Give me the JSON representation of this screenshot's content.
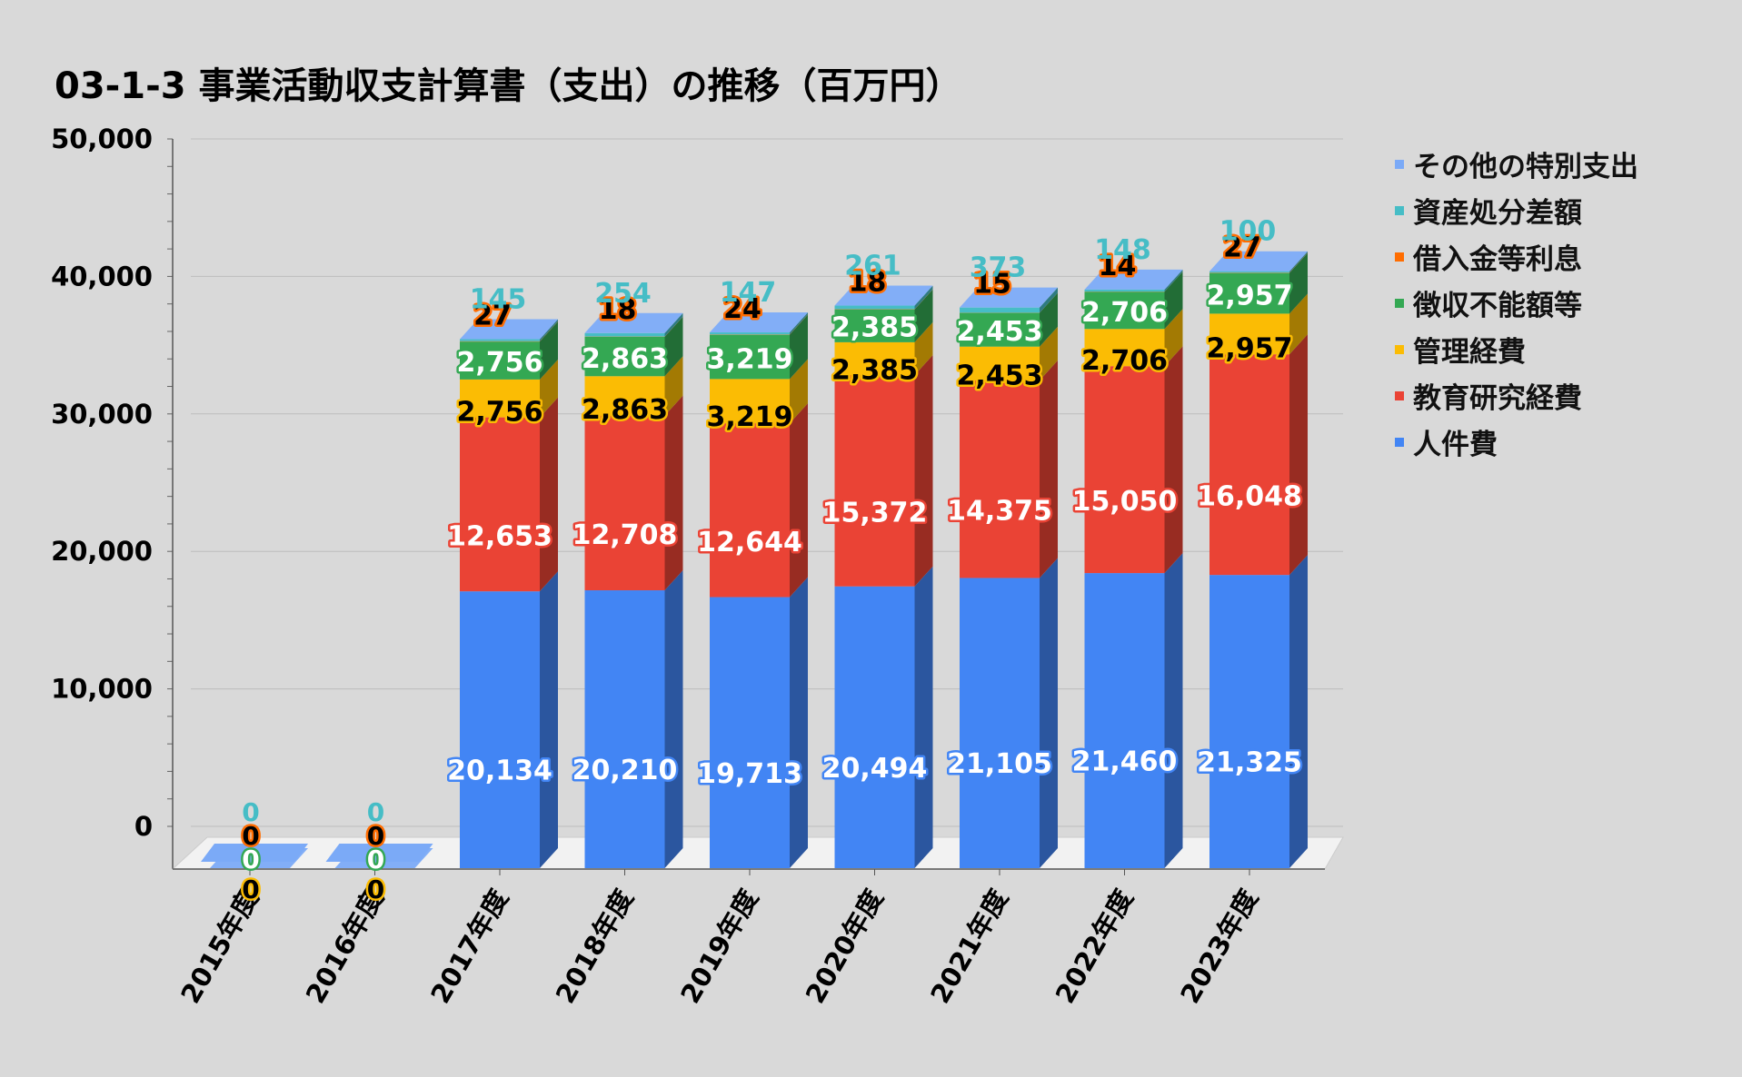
{
  "title": "03-1-3 事業活動収支計算書（支出）の推移（百万円）",
  "chart_data": {
    "type": "bar",
    "stacked": true,
    "style": "3d",
    "title": "03-1-3 事業活動収支計算書（支出）の推移（百万円）",
    "categories": [
      "2015年度",
      "2016年度",
      "2017年度",
      "2018年度",
      "2019年度",
      "2020年度",
      "2021年度",
      "2022年度",
      "2023年度"
    ],
    "ylim": [
      0,
      50000
    ],
    "yticks": [
      "0",
      "10,000",
      "20,000",
      "30,000",
      "40,000",
      "50,000"
    ],
    "yticks_values": [
      0,
      10000,
      20000,
      30000,
      40000,
      50000
    ],
    "grid": true,
    "legend_position": "right",
    "series": [
      {
        "name": "人件費",
        "color": "#4285f4",
        "label_fill": "#ffffff",
        "label_stroke": "#4285f4",
        "labels": [
          "",
          "",
          "20,134",
          "20,210",
          "19,713",
          "20,494",
          "21,105",
          "21,460",
          "21,325"
        ],
        "values": [
          0,
          0,
          20134,
          20210,
          19713,
          20494,
          21105,
          21460,
          21325
        ]
      },
      {
        "name": "教育研究経費",
        "color": "#ea4335",
        "label_fill": "#ffffff",
        "label_stroke": "#ea4335",
        "labels": [
          "",
          "",
          "12,653",
          "12,708",
          "12,644",
          "15,372",
          "14,375",
          "15,050",
          "16,048"
        ],
        "values": [
          0,
          0,
          12653,
          12708,
          12644,
          15372,
          14375,
          15050,
          16048
        ]
      },
      {
        "name": "管理経費",
        "color": "#fbbc04",
        "label_fill": "#000000",
        "label_stroke": "#fbbc04",
        "labels": [
          "0",
          "0",
          "2,756",
          "2,863",
          "3,219",
          "2,385",
          "2,453",
          "2,706",
          "2,957"
        ],
        "values": [
          0,
          0,
          2756,
          2863,
          3219,
          2385,
          2453,
          2706,
          2957
        ]
      },
      {
        "name": "徴収不能額等",
        "color": "#34a853",
        "label_fill": "#ffffff",
        "label_stroke": "#34a853",
        "labels": [
          "0",
          "0",
          "2,756",
          "2,863",
          "3,219",
          "2,385",
          "2,453",
          "2,706",
          "2,957"
        ],
        "values": [
          0,
          0,
          2756,
          2863,
          3219,
          2385,
          2453,
          2706,
          2957
        ]
      },
      {
        "name": "借入金等利息",
        "color": "#ff6d01",
        "label_fill": "#000000",
        "label_stroke": "#ff6d01",
        "labels": [
          "0",
          "0",
          "27",
          "18",
          "24",
          "18",
          "15",
          "14",
          "27"
        ],
        "values": [
          0,
          0,
          27,
          18,
          24,
          18,
          15,
          14,
          27
        ]
      },
      {
        "name": "資産処分差額",
        "color": "#46bdc6",
        "label_fill": "#46bdc6",
        "label_stroke": "none",
        "labels": [
          "0",
          "0",
          "145",
          "254",
          "147",
          "261",
          "373",
          "148",
          "100"
        ],
        "values": [
          0,
          0,
          145,
          254,
          147,
          261,
          373,
          148,
          100
        ]
      },
      {
        "name": "その他の特別支出",
        "color": "#7baaf7",
        "label_fill": "#7baaf7",
        "label_stroke": "none",
        "labels": [
          "",
          "",
          "",
          "",
          "",
          "",
          "",
          "",
          ""
        ],
        "values": [
          0,
          0,
          0,
          0,
          0,
          0,
          0,
          0,
          0
        ]
      }
    ]
  }
}
